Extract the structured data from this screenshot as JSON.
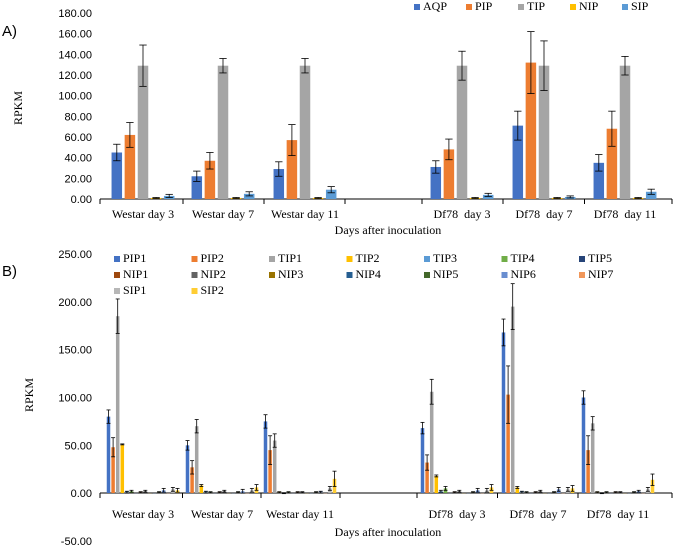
{
  "colors": {
    "AQP": "#4472C4",
    "PIP": "#ED7D31",
    "TIP": "#A5A5A5",
    "NIP": "#FFC000",
    "SIP": "#5B9BD5",
    "PIP1": "#4472C4",
    "PIP2": "#ED7D31",
    "TIP1": "#A5A5A5",
    "TIP2": "#FFC000",
    "TIP3": "#5B9BD5",
    "TIP4": "#70AD47",
    "TIP5": "#264478",
    "NIP1": "#9E480E",
    "NIP2": "#636363",
    "NIP3": "#997300",
    "NIP4": "#255E91",
    "NIP5": "#43682B",
    "NIP6": "#698ED0",
    "NIP7": "#F1975A",
    "SIP1": "#B7B7B7",
    "SIP2": "#FFCD33"
  },
  "chart_data": [
    {
      "panel_label": "A)",
      "type": "bar",
      "ylabel": "RPKM",
      "xlabel": "Days after inoculation",
      "ylim": [
        0,
        180
      ],
      "yticks": [
        "0.00",
        "20.00",
        "40.00",
        "60.00",
        "80.00",
        "100.00",
        "120.00",
        "140.00",
        "160.00",
        "180.00"
      ],
      "categories": [
        "Westar day 3",
        "Westar day 7",
        "Westar day 11",
        "",
        "Df78  day 3",
        "Df78  day 7",
        "Df78  day 11"
      ],
      "series": [
        {
          "name": "AQP",
          "values": [
            45,
            22,
            29,
            null,
            31,
            71,
            35
          ],
          "errors": [
            8,
            5,
            7,
            null,
            6,
            14,
            8
          ]
        },
        {
          "name": "PIP",
          "values": [
            62,
            37,
            57,
            null,
            48,
            132,
            68
          ],
          "errors": [
            12,
            8,
            15,
            null,
            10,
            30,
            17
          ]
        },
        {
          "name": "TIP",
          "values": [
            129,
            129,
            129,
            null,
            129,
            129,
            129
          ],
          "errors": [
            20,
            7,
            7,
            null,
            14,
            24,
            9
          ]
        },
        {
          "name": "NIP",
          "values": [
            1,
            1,
            1,
            null,
            1,
            1,
            1
          ],
          "errors": [
            0.5,
            0.5,
            0.5,
            null,
            0.5,
            0.5,
            0.5
          ]
        },
        {
          "name": "SIP",
          "values": [
            3,
            5,
            9,
            null,
            4,
            2,
            7
          ],
          "errors": [
            1.5,
            2,
            3,
            null,
            1.5,
            1,
            2.5
          ]
        }
      ]
    },
    {
      "panel_label": "B)",
      "type": "bar",
      "ylabel": "RPKM",
      "xlabel": "Days after inoculation",
      "ylim": [
        -50,
        250
      ],
      "yticks": [
        "-50.00",
        "0.00",
        "50.00",
        "100.00",
        "150.00",
        "200.00",
        "250.00"
      ],
      "categories": [
        "Westar day 3",
        "Westar day 7",
        "Westar day 11",
        "",
        "Df78  day 3",
        "Df78  day 7",
        "Df78  day 11"
      ],
      "series": [
        {
          "name": "PIP1",
          "values": [
            80,
            50,
            75,
            null,
            68,
            168,
            100
          ],
          "errors": [
            7,
            5,
            7,
            null,
            6,
            14,
            7
          ]
        },
        {
          "name": "PIP2",
          "values": [
            48,
            27,
            45,
            null,
            32,
            103,
            45
          ],
          "errors": [
            10,
            7,
            15,
            null,
            8,
            30,
            15
          ]
        },
        {
          "name": "TIP1",
          "values": [
            185,
            70,
            55,
            null,
            106,
            195,
            73
          ],
          "errors": [
            18,
            7,
            7,
            null,
            13,
            24,
            7
          ]
        },
        {
          "name": "TIP2",
          "values": [
            51,
            8,
            1,
            null,
            18,
            6,
            1
          ],
          "errors": [
            0.5,
            1,
            0.5,
            null,
            1,
            1,
            0.5
          ]
        },
        {
          "name": "TIP3",
          "values": [
            1,
            1,
            0,
            null,
            2,
            1,
            0
          ],
          "errors": [
            1,
            1,
            0.5,
            null,
            1,
            1,
            0.5
          ]
        },
        {
          "name": "TIP4",
          "values": [
            2,
            1,
            1,
            null,
            5,
            1,
            1
          ],
          "errors": [
            1,
            0.5,
            0.5,
            null,
            2,
            0.5,
            0.5
          ]
        },
        {
          "name": "TIP5",
          "values": [
            0,
            0,
            0,
            null,
            0,
            0,
            0
          ],
          "errors": [
            0,
            0,
            0,
            null,
            0,
            0,
            0
          ]
        },
        {
          "name": "NIP1",
          "values": [
            1,
            1,
            1,
            null,
            1,
            1,
            1
          ],
          "errors": [
            0.5,
            0.5,
            0.5,
            null,
            0.5,
            0.5,
            0.5
          ]
        },
        {
          "name": "NIP2",
          "values": [
            2,
            2,
            1,
            null,
            2,
            2,
            1
          ],
          "errors": [
            1,
            1,
            0.5,
            null,
            1,
            1,
            0.5
          ]
        },
        {
          "name": "NIP3",
          "values": [
            0,
            0,
            0,
            null,
            0,
            0,
            0
          ],
          "errors": [
            0,
            0,
            0,
            null,
            0,
            0,
            0
          ]
        },
        {
          "name": "NIP4",
          "values": [
            0,
            0,
            0,
            null,
            0,
            0,
            0
          ],
          "errors": [
            0,
            0,
            0,
            null,
            0,
            0,
            0
          ]
        },
        {
          "name": "NIP5",
          "values": [
            1,
            1,
            1,
            null,
            1,
            1,
            1
          ],
          "errors": [
            0.5,
            0.5,
            0.5,
            null,
            0.5,
            0.5,
            0.5
          ]
        },
        {
          "name": "NIP6",
          "values": [
            3,
            2,
            1,
            null,
            3,
            4,
            2
          ],
          "errors": [
            2,
            2,
            1,
            null,
            2,
            2,
            1
          ]
        },
        {
          "name": "NIP7",
          "values": [
            0,
            0,
            0,
            null,
            0,
            0,
            0
          ],
          "errors": [
            0,
            0,
            0,
            null,
            0,
            0,
            0
          ]
        },
        {
          "name": "SIP1",
          "values": [
            4,
            3,
            5,
            null,
            3,
            4,
            4
          ],
          "errors": [
            2,
            2,
            2,
            null,
            2,
            2,
            2
          ]
        },
        {
          "name": "SIP2",
          "values": [
            3,
            6,
            15,
            null,
            6,
            5,
            14
          ],
          "errors": [
            2,
            3,
            8,
            null,
            3,
            3,
            6
          ]
        }
      ]
    }
  ]
}
